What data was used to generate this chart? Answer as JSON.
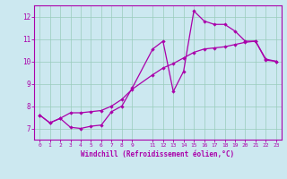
{
  "xlabel": "Windchill (Refroidissement éolien,°C)",
  "bg_color": "#cce8f0",
  "line_color": "#aa00aa",
  "grid_color": "#99ccbb",
  "x_min": -0.5,
  "x_max": 23.5,
  "y_min": 6.5,
  "y_max": 12.5,
  "x_ticks": [
    0,
    1,
    2,
    3,
    4,
    5,
    6,
    7,
    8,
    9,
    11,
    12,
    13,
    14,
    15,
    16,
    17,
    18,
    19,
    20,
    21,
    22,
    23
  ],
  "curve1_x": [
    0,
    1,
    2,
    3,
    4,
    5,
    6,
    7,
    8,
    9,
    11,
    12,
    13,
    14,
    15,
    16,
    17,
    18,
    19,
    20,
    21,
    22,
    23
  ],
  "curve1_y": [
    7.6,
    7.25,
    7.45,
    7.05,
    7.0,
    7.1,
    7.15,
    7.75,
    8.0,
    8.8,
    10.55,
    10.9,
    8.65,
    9.55,
    12.25,
    11.8,
    11.65,
    11.65,
    11.35,
    10.9,
    10.9,
    10.1,
    10.0
  ],
  "curve2_x": [
    0,
    1,
    2,
    3,
    4,
    5,
    6,
    7,
    8,
    9,
    11,
    12,
    13,
    14,
    15,
    16,
    17,
    18,
    19,
    20,
    21,
    22,
    23
  ],
  "curve2_y": [
    7.6,
    7.25,
    7.45,
    7.7,
    7.7,
    7.75,
    7.8,
    8.0,
    8.3,
    8.75,
    9.4,
    9.7,
    9.9,
    10.15,
    10.4,
    10.55,
    10.6,
    10.65,
    10.75,
    10.85,
    10.9,
    10.05,
    10.0
  ],
  "y_ticks": [
    7,
    8,
    9,
    10,
    11,
    12
  ],
  "xtick_fontsize": 4.5,
  "ytick_fontsize": 5.5,
  "xlabel_fontsize": 5.5
}
